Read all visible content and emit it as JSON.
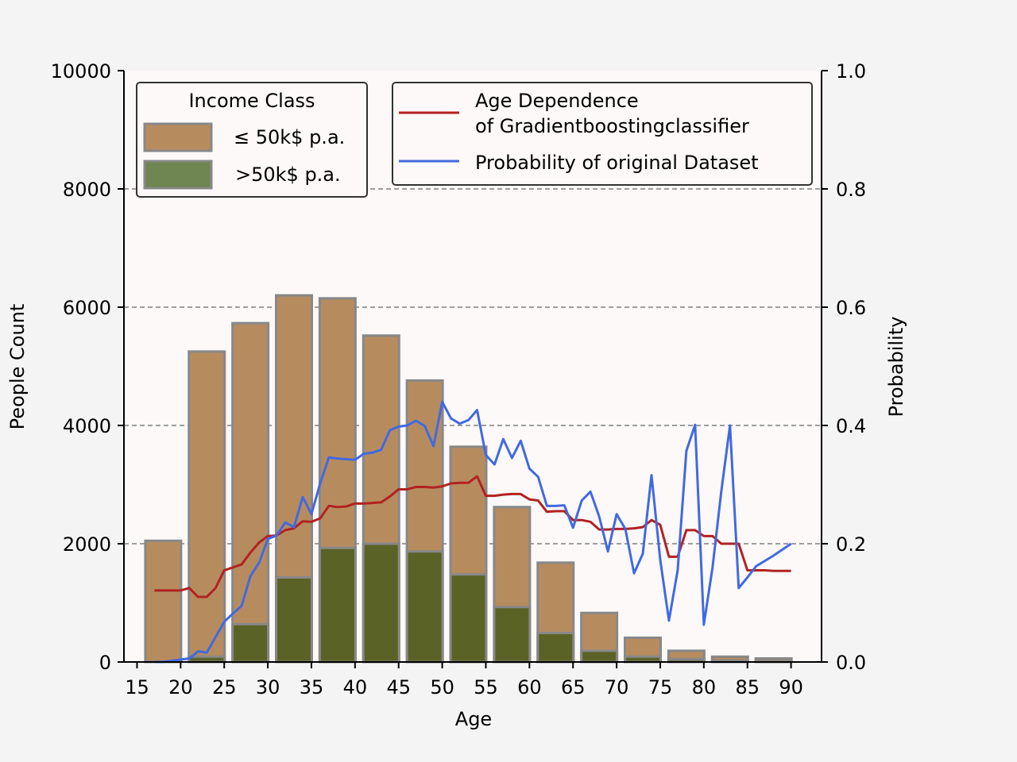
{
  "chart_data": {
    "type": "bar",
    "xlabel": "Age",
    "ylabel_left": "People Count",
    "ylabel_right": "Probability",
    "x_ticks": [
      "15",
      "20",
      "25",
      "30",
      "35",
      "40",
      "45",
      "50",
      "55",
      "60",
      "65",
      "70",
      "75",
      "80",
      "85",
      "90"
    ],
    "y_left_ticks": [
      "0",
      "2000",
      "4000",
      "6000",
      "8000",
      "10000"
    ],
    "y_right_ticks": [
      "0.0",
      "0.2",
      "0.4",
      "0.6",
      "0.8",
      "1.0"
    ],
    "xlim": [
      13.5,
      93.5
    ],
    "ylim_left": [
      0,
      10000
    ],
    "ylim_right": [
      0,
      1
    ],
    "grid": "horizontal dashed",
    "colors": {
      "le50": "#b68c5f",
      "gt50_legend": "#6f8650",
      "gt50": "#5b6226",
      "bar_edge": "#888888",
      "red_line": "#b22222",
      "blue_line": "#4169e1",
      "plot_bg": "#fcf9f8",
      "grid": "#808080"
    },
    "bars": {
      "bin_width": 5,
      "age_bins": [
        17,
        22,
        27,
        32,
        37,
        42,
        47,
        52,
        57,
        62,
        67,
        72,
        77,
        82,
        87
      ],
      "le50_total_counts": [
        2050,
        5250,
        5730,
        6200,
        6150,
        5520,
        4760,
        3640,
        2620,
        1680,
        830,
        410,
        190,
        90,
        60
      ],
      "gt50_counts": [
        5,
        90,
        640,
        1430,
        1930,
        2000,
        1870,
        1480,
        930,
        490,
        190,
        90,
        50,
        25,
        15
      ]
    },
    "legend_income": {
      "title": "Income Class",
      "le50_label": "≤ 50k$ p.a.",
      "gt50_label": ">50k$ p.a.",
      "placement": "top-left"
    },
    "legend_lines": {
      "red_label_line1": "Age Dependence",
      "red_label_line2": "of Gradientboostingclassifier",
      "blue_label": "Probability of original Dataset",
      "placement": "top-center"
    },
    "series": [
      {
        "name": "Age Dependence of Gradientboostingclassifier",
        "x": [
          17,
          18,
          19,
          20,
          21,
          22,
          23,
          24,
          25,
          26,
          27,
          28,
          29,
          30,
          31,
          32,
          33,
          34,
          35,
          36,
          37,
          38,
          39,
          40,
          41,
          42,
          43,
          44,
          45,
          46,
          47,
          48,
          49,
          50,
          51,
          52,
          53,
          54,
          55,
          56,
          57,
          58,
          59,
          60,
          61,
          62,
          63,
          64,
          65,
          66,
          67,
          68,
          69,
          70,
          71,
          72,
          73,
          74,
          75,
          76,
          77,
          78,
          79,
          80,
          81,
          82,
          83,
          84,
          85,
          86,
          87,
          88,
          89,
          90
        ],
        "y": [
          0.121,
          0.121,
          0.121,
          0.121,
          0.125,
          0.11,
          0.11,
          0.125,
          0.155,
          0.16,
          0.165,
          0.185,
          0.202,
          0.213,
          0.214,
          0.223,
          0.226,
          0.238,
          0.237,
          0.243,
          0.264,
          0.262,
          0.263,
          0.268,
          0.268,
          0.269,
          0.27,
          0.28,
          0.292,
          0.292,
          0.296,
          0.296,
          0.295,
          0.297,
          0.302,
          0.303,
          0.303,
          0.314,
          0.281,
          0.281,
          0.283,
          0.284,
          0.284,
          0.275,
          0.273,
          0.254,
          0.255,
          0.255,
          0.24,
          0.24,
          0.237,
          0.224,
          0.224,
          0.225,
          0.225,
          0.226,
          0.228,
          0.24,
          0.232,
          0.178,
          0.178,
          0.223,
          0.223,
          0.213,
          0.213,
          0.2,
          0.2,
          0.2,
          0.155,
          0.155,
          0.155,
          0.154,
          0.154,
          0.154
        ]
      },
      {
        "name": "Probability of original Dataset",
        "x": [
          17,
          18,
          19,
          20,
          21,
          22,
          23,
          24,
          25,
          26,
          27,
          28,
          29,
          30,
          31,
          32,
          33,
          34,
          35,
          36,
          37,
          38,
          39,
          40,
          41,
          42,
          43,
          44,
          45,
          46,
          47,
          48,
          49,
          50,
          51,
          52,
          53,
          54,
          55,
          56,
          57,
          58,
          59,
          60,
          61,
          62,
          63,
          64,
          65,
          66,
          67,
          68,
          69,
          70,
          71,
          72,
          73,
          74,
          75,
          76,
          77,
          78,
          79,
          80,
          81,
          82,
          83,
          84,
          85,
          86,
          87,
          88,
          89,
          90
        ],
        "y": [
          0.0,
          0.0,
          0.002,
          0.004,
          0.006,
          0.018,
          0.016,
          0.042,
          0.068,
          0.082,
          0.095,
          0.145,
          0.168,
          0.208,
          0.214,
          0.236,
          0.228,
          0.279,
          0.25,
          0.302,
          0.346,
          0.344,
          0.343,
          0.342,
          0.352,
          0.354,
          0.359,
          0.392,
          0.398,
          0.4,
          0.408,
          0.399,
          0.365,
          0.44,
          0.412,
          0.403,
          0.409,
          0.426,
          0.35,
          0.334,
          0.377,
          0.345,
          0.374,
          0.327,
          0.313,
          0.264,
          0.264,
          0.265,
          0.227,
          0.273,
          0.288,
          0.246,
          0.187,
          0.25,
          0.225,
          0.15,
          0.183,
          0.316,
          0.173,
          0.07,
          0.155,
          0.357,
          0.401,
          0.063,
          0.16,
          0.288,
          0.4,
          0.125,
          0.143,
          0.162,
          0.171,
          0.18,
          0.19,
          0.2
        ]
      }
    ]
  }
}
